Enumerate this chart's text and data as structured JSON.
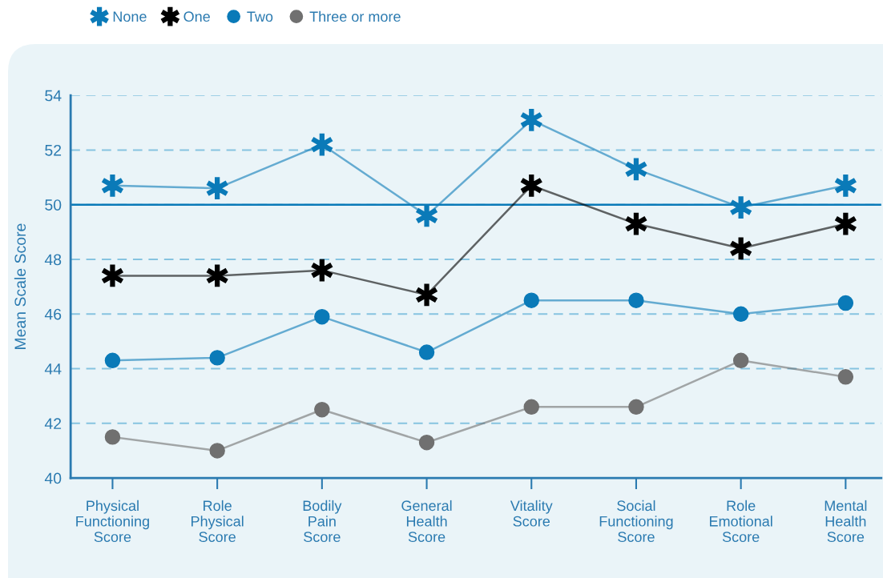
{
  "chart_data": {
    "type": "line",
    "categories": [
      "Physical\nFunctioning\nScore",
      "Role\nPhysical\nScore",
      "Bodily\nPain\nScore",
      "General\nHealth\nScore",
      "Vitality\nScore",
      "Social\nFunctioning\nScore",
      "Role\nEmotional\nScore",
      "Mental\nHealth\nScore"
    ],
    "series": [
      {
        "name": "None",
        "color": "#0a7ab8",
        "marker": "cross",
        "values": [
          50.7,
          50.6,
          52.2,
          49.6,
          53.1,
          51.3,
          49.9,
          50.7
        ]
      },
      {
        "name": "One",
        "color": "#000000",
        "marker": "cross",
        "values": [
          47.4,
          47.4,
          47.6,
          46.7,
          50.7,
          49.3,
          48.4,
          49.3
        ]
      },
      {
        "name": "Two",
        "color": "#0a7ab8",
        "marker": "circle",
        "values": [
          44.3,
          44.4,
          45.9,
          44.6,
          46.5,
          46.5,
          46.0,
          46.4
        ]
      },
      {
        "name": "Three or more",
        "color": "#707070",
        "marker": "circle",
        "values": [
          41.5,
          41.0,
          42.5,
          41.3,
          42.6,
          42.6,
          44.3,
          43.7
        ]
      }
    ],
    "ylabel": "Mean Scale Score",
    "ylim": [
      40,
      54
    ],
    "yticks": [
      40,
      42,
      44,
      46,
      48,
      50,
      52,
      54
    ],
    "ref_lines": [
      {
        "axis": "y",
        "value": 50,
        "color": "#0a7ab8",
        "line_style": "solid"
      }
    ],
    "grid": "y",
    "legend": "top left",
    "line_style": "solid"
  }
}
